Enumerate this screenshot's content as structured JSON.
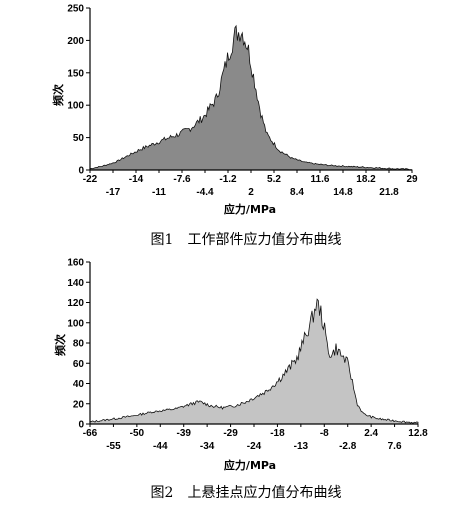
{
  "chart_data": [
    {
      "type": "area",
      "caption": "图1　工作部件应力值分布曲线",
      "xlabel": "应力/MPa",
      "ylabel": "频次",
      "xlim": [
        -22,
        29
      ],
      "ylim": [
        0,
        250
      ],
      "yticks": [
        0,
        50,
        100,
        150,
        200,
        250
      ],
      "xticks_top": [
        "-22",
        "-14",
        "-7.6",
        "-1.2",
        "5.2",
        "11.6",
        "18.2",
        "29"
      ],
      "xticks_bottom": [
        "-17",
        "-11",
        "-4.4",
        "2",
        "8.4",
        "14.8",
        "21.8"
      ],
      "fill_color": "#8a8a8a",
      "grid": false,
      "x": [
        -22,
        -20,
        -18,
        -16,
        -14,
        -12,
        -10,
        -8,
        -6,
        -4,
        -2,
        0,
        1,
        2,
        3,
        4,
        5,
        6,
        8,
        10,
        12,
        14,
        16,
        18,
        20,
        22,
        24,
        26,
        29
      ],
      "y": [
        2,
        6,
        12,
        22,
        32,
        40,
        48,
        55,
        65,
        82,
        110,
        180,
        210,
        215,
        190,
        140,
        90,
        55,
        30,
        18,
        12,
        9,
        7,
        6,
        5,
        4,
        3,
        2,
        1
      ]
    },
    {
      "type": "area",
      "caption": "图2　上悬挂点应力值分布曲线",
      "xlabel": "应力/MPa",
      "ylabel": "频次",
      "xlim": [
        -66,
        18
      ],
      "ylim": [
        0,
        160
      ],
      "yticks": [
        0,
        20,
        40,
        60,
        80,
        100,
        120,
        140,
        160
      ],
      "xticks_top": [
        "-66",
        "-50",
        "-39",
        "-29",
        "-18",
        "-8",
        "2.4",
        "12.8"
      ],
      "xticks_bottom": [
        "-55",
        "-44",
        "-34",
        "-24",
        "-13",
        "-2.8",
        "7.6"
      ],
      "fill_color": "#c4c4c4",
      "grid": false,
      "x": [
        -66,
        -60,
        -55,
        -50,
        -44,
        -40,
        -38,
        -35,
        -32,
        -29,
        -26,
        -24,
        -21,
        -18,
        -15,
        -13,
        -11,
        -9,
        -8,
        -7,
        -6,
        -5,
        -4,
        -3,
        -2,
        -1,
        0,
        1,
        2.4,
        4,
        6,
        8,
        10,
        12.8,
        15,
        18
      ],
      "y": [
        2,
        5,
        8,
        12,
        15,
        20,
        22,
        18,
        16,
        18,
        22,
        26,
        32,
        42,
        55,
        65,
        85,
        105,
        120,
        112,
        95,
        72,
        68,
        75,
        70,
        65,
        60,
        45,
        20,
        10,
        7,
        5,
        4,
        3,
        2,
        1
      ]
    }
  ]
}
